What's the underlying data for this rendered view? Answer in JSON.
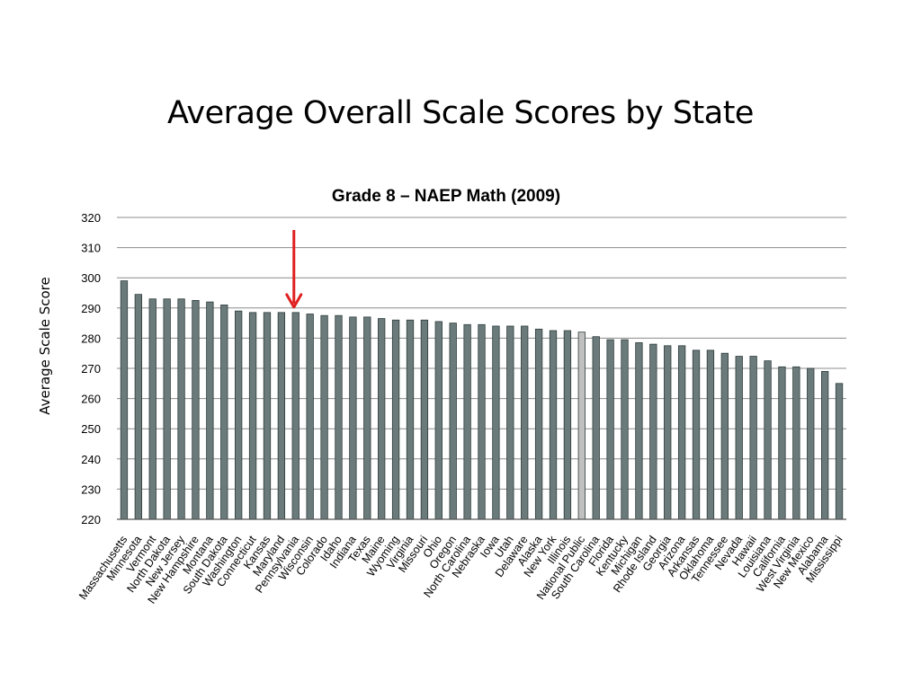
{
  "slide": {
    "title": "Average Overall Scale Scores by State"
  },
  "colors": {
    "bar": "#6b7b7b",
    "highlight_bar": "#c0c0c0",
    "arrow": "#e02020",
    "grid": "#8c8c8c"
  },
  "chart_data": {
    "type": "bar",
    "title": "Grade 8 – NAEP Math (2009)",
    "xlabel": "",
    "ylabel": "Average Scale Score",
    "ylim": [
      220,
      320
    ],
    "yticks": [
      220,
      230,
      240,
      250,
      260,
      270,
      280,
      290,
      300,
      310,
      320
    ],
    "grid": true,
    "legend": "none",
    "categories": [
      "Massachusetts",
      "Minnesota",
      "Vermont",
      "North Dakota",
      "New Jersey",
      "New Hampshire",
      "Montana",
      "South Dakota",
      "Washington",
      "Connecticut",
      "Kansas",
      "Maryland",
      "Pennsylvania",
      "Wisconsin",
      "Colorado",
      "Idaho",
      "Indiana",
      "Texas",
      "Maine",
      "Wyoming",
      "Virginia",
      "Missouri",
      "Ohio",
      "Oregon",
      "North Carolina",
      "Nebraska",
      "Iowa",
      "Utah",
      "Delaware",
      "Alaska",
      "New York",
      "Illinois",
      "National Public",
      "South Carolina",
      "Florida",
      "Kentucky",
      "Michigan",
      "Rhode Island",
      "Georgia",
      "Arizona",
      "Arkansas",
      "Oklahoma",
      "Tennessee",
      "Nevada",
      "Hawaii",
      "Louisiana",
      "California",
      "West Virginia",
      "New Mexico",
      "Alabama",
      "Mississippi"
    ],
    "values": [
      299,
      294.5,
      293,
      293,
      293,
      292.5,
      292,
      291,
      289,
      288.5,
      288.5,
      288.5,
      288.5,
      288,
      287.5,
      287.5,
      287,
      287,
      286.5,
      286,
      286,
      286,
      285.5,
      285,
      284.5,
      284.5,
      284,
      284,
      284,
      283,
      282.5,
      282.5,
      282,
      280.5,
      279.5,
      279.5,
      278.5,
      278,
      277.5,
      277.5,
      276,
      276,
      275,
      274,
      274,
      272.5,
      270.5,
      270.5,
      270,
      269,
      265
    ],
    "highlight_category": "National Public",
    "annotation": {
      "type": "arrow",
      "points_to": "Pennsylvania"
    }
  }
}
